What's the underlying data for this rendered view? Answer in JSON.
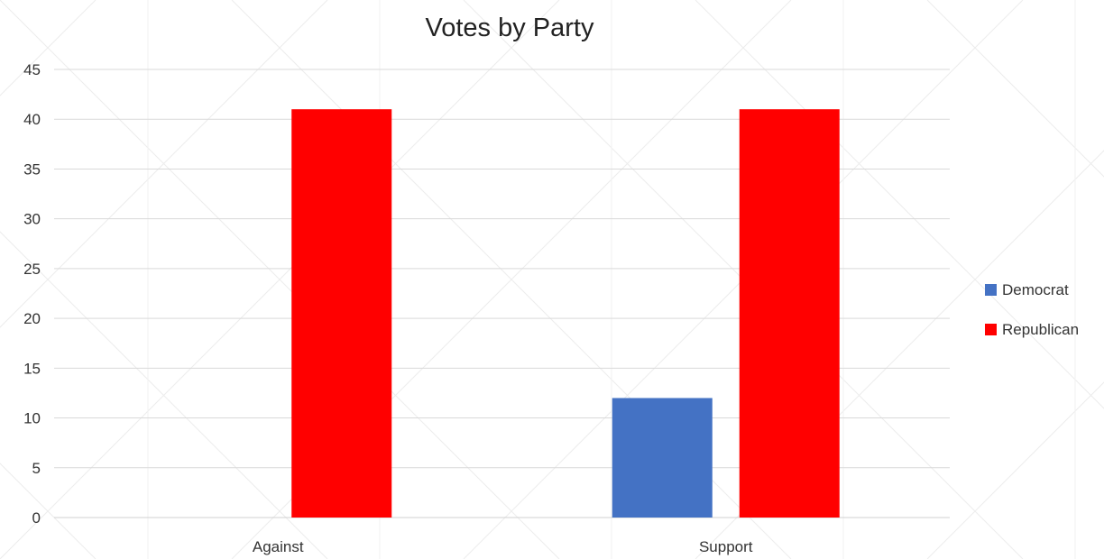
{
  "chart_data": {
    "type": "bar",
    "title": "Votes by Party",
    "xlabel": "",
    "ylabel": "",
    "categories": [
      "Against",
      "Support"
    ],
    "series": [
      {
        "name": "Democrat",
        "values": [
          0,
          12
        ],
        "color": "#4472C4"
      },
      {
        "name": "Republican",
        "values": [
          41,
          41
        ],
        "color": "#FF0000"
      }
    ],
    "ylim": [
      0,
      45
    ],
    "yticks": [
      "0",
      "5",
      "10",
      "15",
      "20",
      "25",
      "30",
      "35",
      "40",
      "45"
    ],
    "grid": true,
    "legend_position": "right"
  }
}
